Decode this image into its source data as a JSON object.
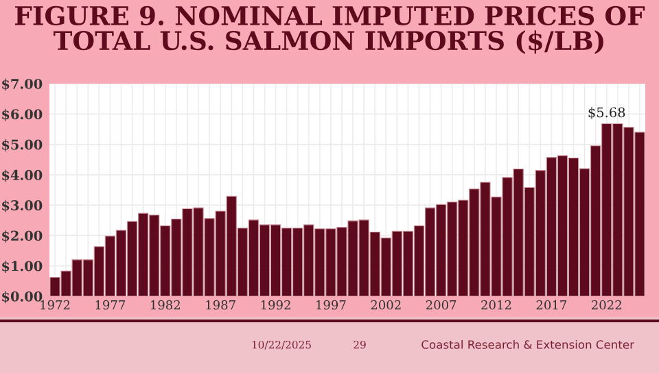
{
  "chart_data": {
    "type": "bar",
    "title": "FIGURE 9. NOMINAL IMPUTED PRICES OF\nTOTAL U.S. SALMON IMPORTS ($/LB)",
    "categories": [
      "1972",
      null,
      null,
      null,
      null,
      "1977",
      null,
      null,
      null,
      null,
      "1982",
      null,
      null,
      null,
      null,
      "1987",
      null,
      null,
      null,
      null,
      "1992",
      null,
      null,
      null,
      null,
      "1997",
      null,
      null,
      null,
      null,
      "2002",
      null,
      null,
      null,
      null,
      "2007",
      null,
      null,
      null,
      null,
      "2012",
      null,
      null,
      null,
      null,
      "2017",
      null,
      null,
      null,
      null,
      "2022",
      null,
      null,
      null
    ],
    "values": [
      0.62,
      0.83,
      1.2,
      1.2,
      1.63,
      1.98,
      2.17,
      2.46,
      2.73,
      2.67,
      2.32,
      2.54,
      2.88,
      2.91,
      2.56,
      2.8,
      3.29,
      2.24,
      2.51,
      2.35,
      2.35,
      2.24,
      2.24,
      2.35,
      2.22,
      2.22,
      2.27,
      2.48,
      2.51,
      2.11,
      1.92,
      2.14,
      2.14,
      2.32,
      2.91,
      3.02,
      3.1,
      3.16,
      3.53,
      3.75,
      3.27,
      3.91,
      4.19,
      3.58,
      4.14,
      4.57,
      4.63,
      4.55,
      4.2,
      4.95,
      5.68,
      5.68,
      5.56,
      5.4
    ],
    "value_labels": [
      null,
      null,
      null,
      null,
      null,
      null,
      null,
      null,
      null,
      null,
      null,
      null,
      null,
      null,
      null,
      null,
      null,
      null,
      null,
      null,
      null,
      null,
      null,
      null,
      null,
      null,
      null,
      null,
      null,
      null,
      null,
      null,
      null,
      null,
      null,
      null,
      null,
      null,
      null,
      null,
      null,
      null,
      null,
      null,
      null,
      null,
      null,
      null,
      null,
      null,
      "$5.68",
      null,
      null,
      null
    ],
    "color": "#5c0a1c",
    "ylim": [
      0,
      7
    ],
    "yticks": [
      {
        "value": 0,
        "label": "$0.00"
      },
      {
        "value": 1,
        "label": "$1.00"
      },
      {
        "value": 2,
        "label": "$2.00"
      },
      {
        "value": 3,
        "label": "$3.00"
      },
      {
        "value": 4,
        "label": "$4.00"
      },
      {
        "value": 5,
        "label": "$5.00"
      },
      {
        "value": 6,
        "label": "$6.00"
      },
      {
        "value": 7,
        "label": "$7.00"
      }
    ],
    "grid": true,
    "annotations": [
      "10/22/2025",
      "29",
      "Coastal Research & Extension Center"
    ]
  }
}
